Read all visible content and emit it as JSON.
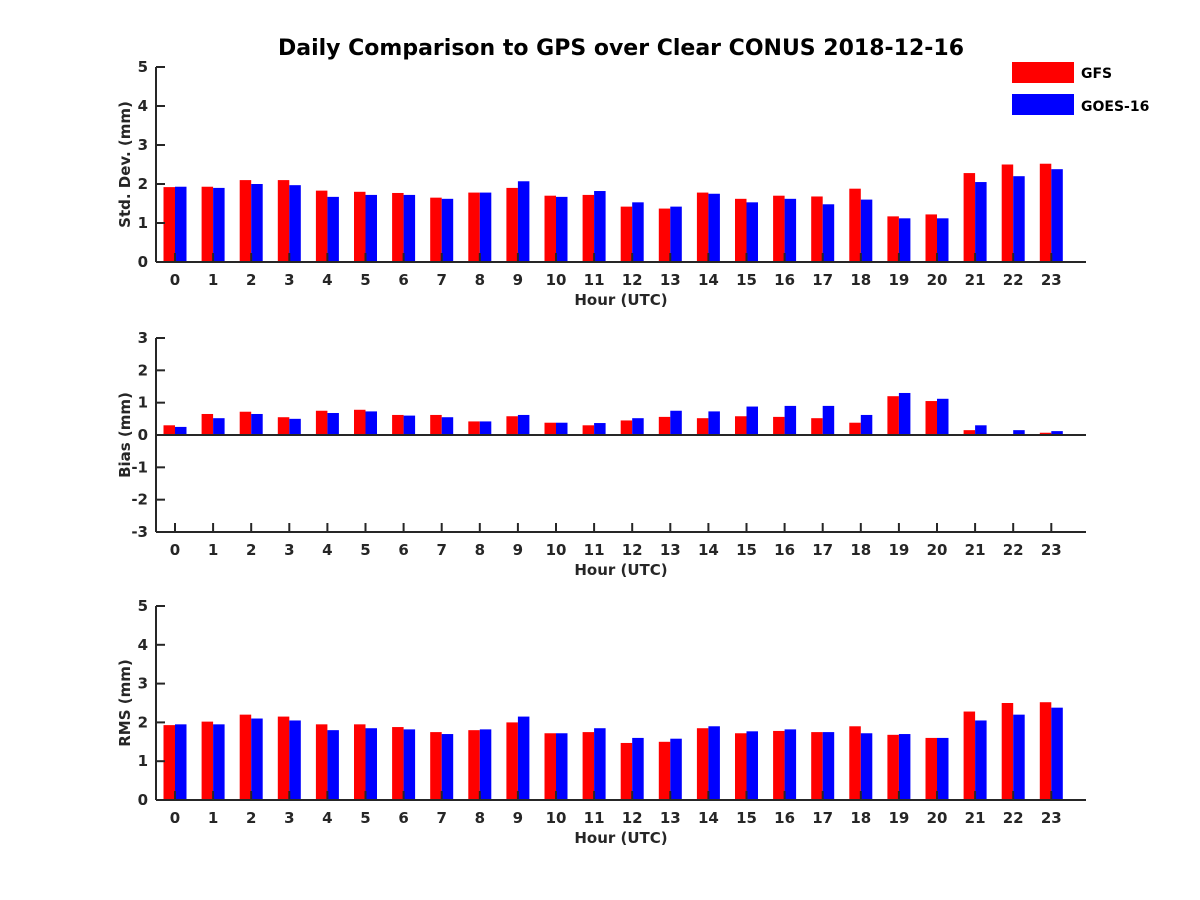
{
  "title": "Daily Comparison to GPS over Clear CONUS 2018-12-16",
  "legend": [
    {
      "name": "GFS",
      "color": "#ff0000"
    },
    {
      "name": "GOES-16",
      "color": "#0000ff"
    }
  ],
  "chart_data": [
    {
      "type": "bar",
      "title": "Daily Comparison to GPS over Clear CONUS 2018-12-16",
      "xlabel": "Hour (UTC)",
      "ylabel": "Std. Dev. (mm)",
      "ylim": [
        0,
        5
      ],
      "yticks": [
        "0",
        "1",
        "2",
        "3",
        "4",
        "5"
      ],
      "categories": [
        "0",
        "1",
        "2",
        "3",
        "4",
        "5",
        "6",
        "7",
        "8",
        "9",
        "10",
        "11",
        "12",
        "13",
        "14",
        "15",
        "16",
        "17",
        "18",
        "19",
        "20",
        "21",
        "22",
        "23"
      ],
      "series": [
        {
          "name": "GFS",
          "color": "#ff0000",
          "values": [
            1.92,
            1.93,
            2.1,
            2.1,
            1.83,
            1.8,
            1.77,
            1.65,
            1.78,
            1.9,
            1.7,
            1.72,
            1.42,
            1.37,
            1.78,
            1.62,
            1.7,
            1.68,
            1.88,
            1.17,
            1.22,
            2.28,
            2.5,
            2.52
          ]
        },
        {
          "name": "GOES-16",
          "color": "#0000ff",
          "values": [
            1.93,
            1.9,
            2.0,
            1.97,
            1.67,
            1.72,
            1.72,
            1.62,
            1.78,
            2.07,
            1.67,
            1.82,
            1.53,
            1.42,
            1.75,
            1.53,
            1.62,
            1.48,
            1.6,
            1.12,
            1.12,
            2.05,
            2.2,
            2.38
          ]
        }
      ]
    },
    {
      "type": "bar",
      "xlabel": "Hour (UTC)",
      "ylabel": "Bias (mm)",
      "ylim": [
        -3,
        3
      ],
      "yticks": [
        "-3",
        "-2",
        "-1",
        "0",
        "1",
        "2",
        "3"
      ],
      "categories": [
        "0",
        "1",
        "2",
        "3",
        "4",
        "5",
        "6",
        "7",
        "8",
        "9",
        "10",
        "11",
        "12",
        "13",
        "14",
        "15",
        "16",
        "17",
        "18",
        "19",
        "20",
        "21",
        "22",
        "23"
      ],
      "series": [
        {
          "name": "GFS",
          "color": "#ff0000",
          "values": [
            0.3,
            0.65,
            0.72,
            0.55,
            0.75,
            0.78,
            0.62,
            0.62,
            0.42,
            0.58,
            0.38,
            0.3,
            0.45,
            0.56,
            0.52,
            0.58,
            0.56,
            0.52,
            0.38,
            1.2,
            1.05,
            0.15,
            0.0,
            0.07
          ]
        },
        {
          "name": "GOES-16",
          "color": "#0000ff",
          "values": [
            0.25,
            0.52,
            0.65,
            0.5,
            0.68,
            0.73,
            0.6,
            0.55,
            0.42,
            0.62,
            0.38,
            0.37,
            0.52,
            0.75,
            0.73,
            0.88,
            0.9,
            0.9,
            0.62,
            1.3,
            1.12,
            0.3,
            0.15,
            0.12
          ]
        }
      ]
    },
    {
      "type": "bar",
      "xlabel": "Hour (UTC)",
      "ylabel": "RMS (mm)",
      "ylim": [
        0,
        5
      ],
      "yticks": [
        "0",
        "1",
        "2",
        "3",
        "4",
        "5"
      ],
      "categories": [
        "0",
        "1",
        "2",
        "3",
        "4",
        "5",
        "6",
        "7",
        "8",
        "9",
        "10",
        "11",
        "12",
        "13",
        "14",
        "15",
        "16",
        "17",
        "18",
        "19",
        "20",
        "21",
        "22",
        "23"
      ],
      "series": [
        {
          "name": "GFS",
          "color": "#ff0000",
          "values": [
            1.93,
            2.02,
            2.2,
            2.15,
            1.95,
            1.95,
            1.88,
            1.75,
            1.8,
            2.0,
            1.72,
            1.75,
            1.47,
            1.5,
            1.85,
            1.72,
            1.78,
            1.75,
            1.9,
            1.68,
            1.6,
            2.28,
            2.5,
            2.52
          ]
        },
        {
          "name": "GOES-16",
          "color": "#0000ff",
          "values": [
            1.95,
            1.95,
            2.1,
            2.05,
            1.8,
            1.85,
            1.82,
            1.7,
            1.82,
            2.15,
            1.72,
            1.85,
            1.6,
            1.58,
            1.9,
            1.77,
            1.82,
            1.75,
            1.72,
            1.7,
            1.6,
            2.05,
            2.2,
            2.38
          ]
        }
      ]
    }
  ]
}
